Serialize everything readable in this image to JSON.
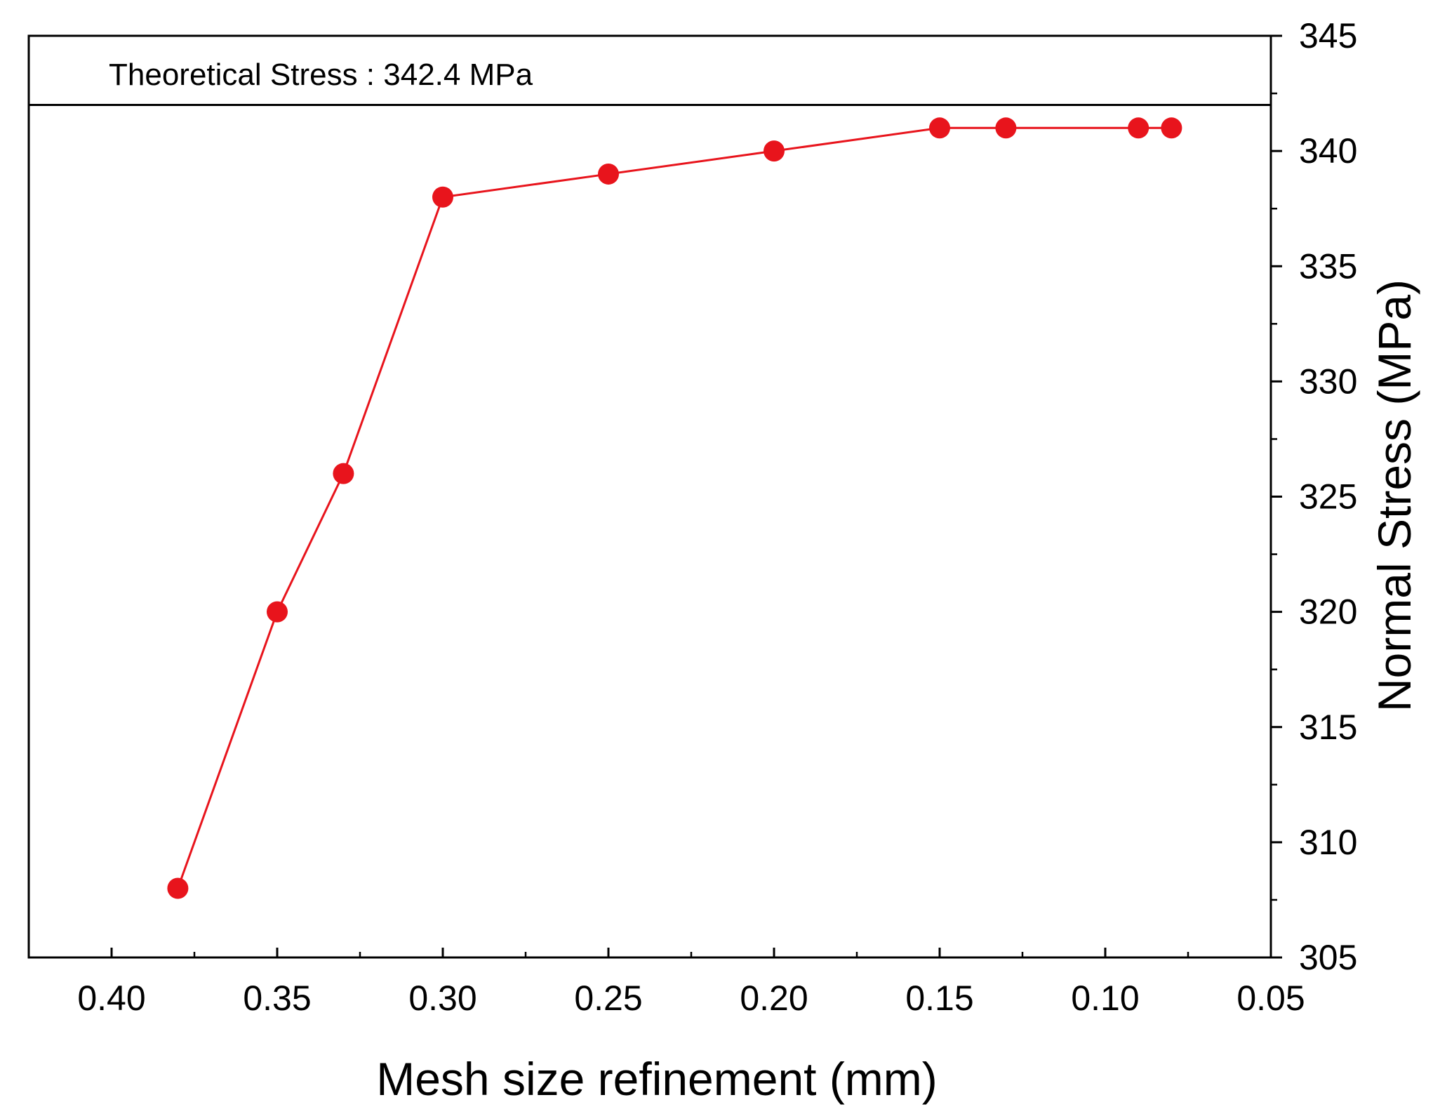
{
  "chart_data": {
    "type": "line",
    "title": "",
    "xlabel": "Mesh size refinement (mm)",
    "ylabel": "Normal Stress (MPa)",
    "xlim": [
      0.425,
      0.05
    ],
    "ylim": [
      305,
      345
    ],
    "x_ticks": [
      "0.40",
      "0.35",
      "0.30",
      "0.25",
      "0.20",
      "0.15",
      "0.10",
      "0.05"
    ],
    "y_ticks": [
      "305",
      "310",
      "315",
      "320",
      "325",
      "330",
      "335",
      "340",
      "345"
    ],
    "x_axis_position": "bottom",
    "y_axis_position": "right",
    "grid": false,
    "series": [
      {
        "name": "Normal Stress",
        "color": "#e8141c",
        "marker": "circle",
        "x": [
          0.38,
          0.35,
          0.33,
          0.3,
          0.25,
          0.2,
          0.15,
          0.13,
          0.09,
          0.08
        ],
        "values": [
          308,
          320,
          326,
          338,
          339,
          340,
          341,
          341,
          341,
          341
        ]
      }
    ],
    "reference_line": {
      "value": 342,
      "color": "#000000"
    },
    "annotations": [
      {
        "text": "Theoretical Stress : 342.4 MPa"
      }
    ]
  }
}
